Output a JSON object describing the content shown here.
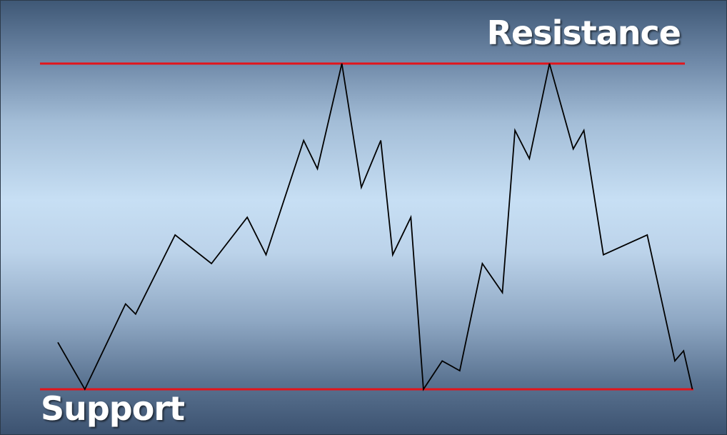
{
  "labels": {
    "resistance": "Resistance",
    "support": "Support"
  },
  "colors": {
    "level_line": "#e3141b",
    "price_line": "#000000",
    "label_text": "#ffffff"
  },
  "chart_data": {
    "type": "line",
    "title": "",
    "xlabel": "",
    "ylabel": "",
    "grid": false,
    "ylim": [
      0,
      100
    ],
    "levels": {
      "resistance": 100,
      "support": 0
    },
    "series": [
      {
        "x": [
          0,
          4.3,
          10.8,
          12.4,
          18.7,
          24.5,
          30.2,
          33.2,
          39.2,
          41.4,
          45.3,
          48.4,
          51.5,
          53.4,
          56.3,
          58.3,
          61.3,
          64.1,
          67.7,
          70.9,
          72.9,
          75.2,
          78.4,
          82.2,
          83.9,
          87.0,
          94.0,
          98.4,
          99.8,
          101.2
        ],
        "y": [
          14.4,
          0,
          26.2,
          23.1,
          47.4,
          38.6,
          52.8,
          41.3,
          76.4,
          67.7,
          100,
          62.0,
          76.4,
          41.3,
          52.8,
          0,
          8.7,
          5.7,
          38.6,
          29.7,
          79.5,
          70.8,
          100,
          73.8,
          79.5,
          41.3,
          47.4,
          8.7,
          11.8,
          0
        ]
      }
    ]
  }
}
